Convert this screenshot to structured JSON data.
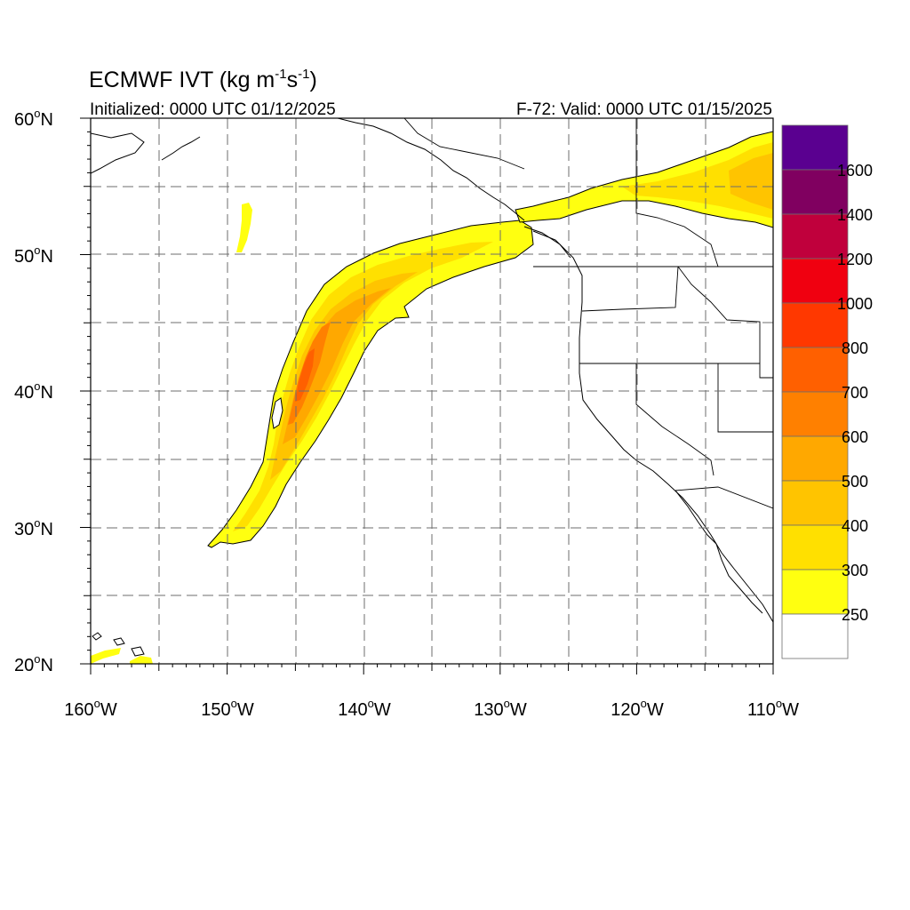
{
  "title": {
    "main": "ECMWF IVT (kg m",
    "exp1": "-1",
    "mid": "s",
    "exp2": "-1",
    "end": ")"
  },
  "subtitle_left": "Initialized: 0000 UTC 01/12/2025",
  "subtitle_right": "F-72: Valid: 0000 UTC 01/15/2025",
  "map": {
    "lon_range": [
      -160,
      -110
    ],
    "lat_range": [
      20,
      60
    ],
    "lat_labels": [
      "60",
      "50",
      "40",
      "30",
      "20"
    ],
    "lat_hemi": "N",
    "lon_labels": [
      "160",
      "150",
      "140",
      "130",
      "120",
      "110"
    ],
    "lon_hemi": "W",
    "degree_symbol": "o",
    "gridlines": true
  },
  "colorbar": {
    "labels": [
      "1600",
      "1400",
      "1200",
      "1000",
      "800",
      "700",
      "600",
      "500",
      "400",
      "300",
      "250"
    ],
    "colors": [
      "#5a0090",
      "#800060",
      "#c0003c",
      "#f00010",
      "#ff3800",
      "#ff6000",
      "#ff8000",
      "#ffa800",
      "#ffc400",
      "#ffe000",
      "#ffff10",
      "#ffffff"
    ]
  }
}
